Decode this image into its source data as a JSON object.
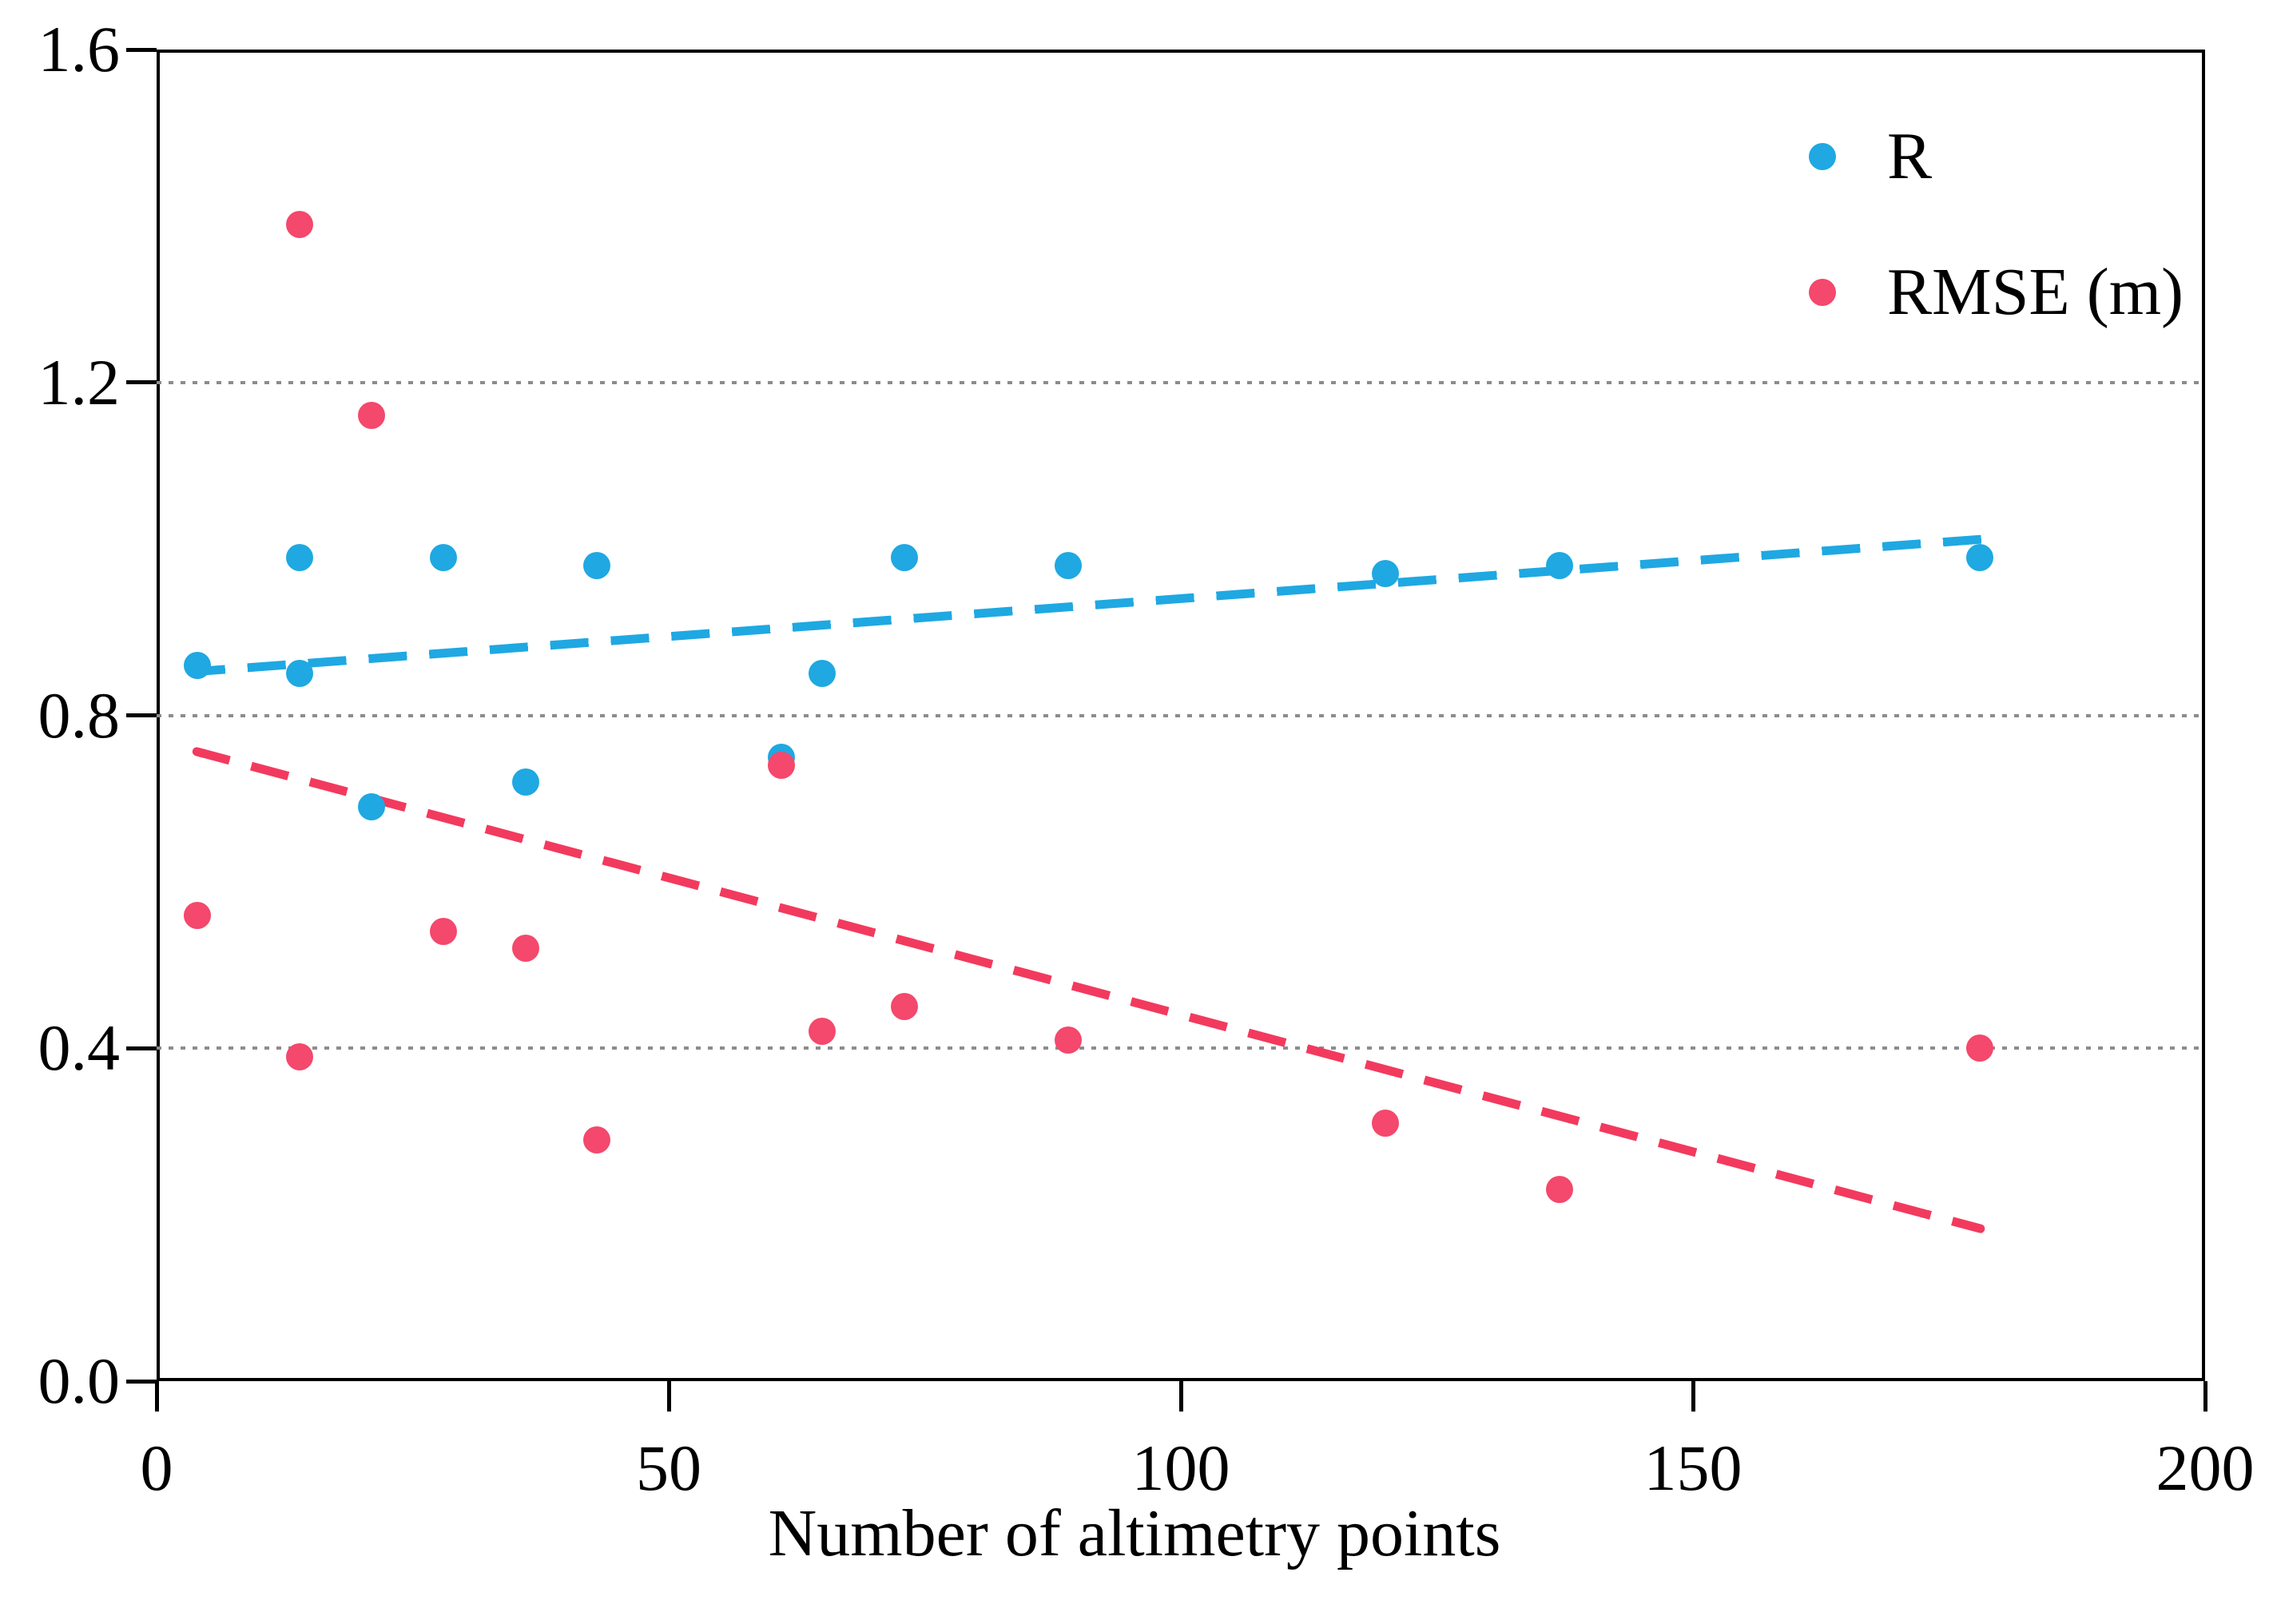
{
  "figure": {
    "background": "#ffffff",
    "frame_color": "#000000",
    "gridline_color": "#8c8c8c"
  },
  "chart_data": {
    "type": "scatter",
    "title": "",
    "xlabel": "Number of altimetry points",
    "ylabel": "",
    "xlim": [
      0,
      200
    ],
    "ylim": [
      0,
      1.6
    ],
    "grid": "dotted horizontal",
    "gridlines_y": [
      0.4,
      0.8,
      1.2
    ],
    "x_ticks": [
      {
        "value": 0,
        "label": "0"
      },
      {
        "value": 50,
        "label": "50"
      },
      {
        "value": 100,
        "label": "100"
      },
      {
        "value": 150,
        "label": "150"
      },
      {
        "value": 200,
        "label": "200"
      }
    ],
    "y_ticks": [
      {
        "value": 0.0,
        "label": "0.0"
      },
      {
        "value": 0.4,
        "label": "0.4"
      },
      {
        "value": 0.8,
        "label": "0.8"
      },
      {
        "value": 1.2,
        "label": "1.2"
      },
      {
        "value": 1.6,
        "label": "1.6"
      }
    ],
    "legend": {
      "position": "top-right",
      "entries": [
        {
          "label": "R",
          "color": "#1fa8e2"
        },
        {
          "label": "RMSE (m)",
          "color": "#f4486c"
        }
      ]
    },
    "series": [
      {
        "name": "R",
        "color": "#1fa8e2",
        "marker": "circle",
        "points": [
          [
            4,
            0.86
          ],
          [
            14,
            0.99
          ],
          [
            14,
            0.85
          ],
          [
            21,
            0.69
          ],
          [
            28,
            0.99
          ],
          [
            36,
            0.72
          ],
          [
            43,
            0.98
          ],
          [
            61,
            0.75
          ],
          [
            65,
            0.85
          ],
          [
            73,
            0.99
          ],
          [
            89,
            0.98
          ],
          [
            120,
            0.97
          ],
          [
            137,
            0.98
          ],
          [
            178,
            0.99
          ]
        ]
      },
      {
        "name": "RMSE (m)",
        "color": "#f4486c",
        "marker": "circle",
        "points": [
          [
            4,
            0.56
          ],
          [
            14,
            1.39
          ],
          [
            14,
            0.39
          ],
          [
            21,
            1.16
          ],
          [
            28,
            0.54
          ],
          [
            36,
            0.52
          ],
          [
            43,
            0.29
          ],
          [
            61,
            0.74
          ],
          [
            65,
            0.42
          ],
          [
            73,
            0.45
          ],
          [
            89,
            0.41
          ],
          [
            120,
            0.31
          ],
          [
            137,
            0.23
          ],
          [
            178,
            0.4
          ]
        ]
      }
    ],
    "trend_lines": [
      {
        "series": "R",
        "style": "dashed",
        "color": "#1fa8e2",
        "from": [
          3.0,
          0.852
        ],
        "to": [
          178.5,
          1.012
        ]
      },
      {
        "series": "RMSE (m)",
        "style": "dashed",
        "color": "#f23a5e",
        "from": [
          3.5,
          0.758
        ],
        "to": [
          178.5,
          0.182
        ]
      }
    ]
  }
}
